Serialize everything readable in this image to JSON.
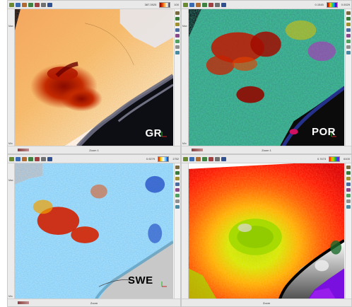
{
  "panels": [
    {
      "id": "gr",
      "label": "GR",
      "colorbar_value_left": "387.3925",
      "colorbar_value_right": "100",
      "zoom_text": "Zoom",
      "zoom_value": "1",
      "side_top": "Max",
      "side_bottom": "Min"
    },
    {
      "id": "por",
      "label": "POR",
      "colorbar_value_left": "0.1545",
      "colorbar_value_right": "0.0029",
      "zoom_text": "Zoom",
      "zoom_value": "1",
      "side_top": "Max",
      "side_bottom": "Min"
    },
    {
      "id": "swe",
      "label": "SWE",
      "colorbar_value_left": "0.9279",
      "colorbar_value_right": "1752",
      "zoom_text": "Zoom",
      "zoom_value": "",
      "side_top": "Max",
      "side_bottom": "Min"
    },
    {
      "id": "other",
      "label": "",
      "colorbar_value_left": "0.7473",
      "colorbar_value_right": "6100",
      "zoom_text": "Zoom",
      "zoom_value": "",
      "side_top": "",
      "side_bottom": ""
    }
  ],
  "icons": {
    "toolbar": [
      "select-icon",
      "pan-icon",
      "zoom-icon",
      "layer-icon",
      "palette-icon",
      "grid-icon",
      "export-icon"
    ],
    "sidebar": [
      "properties-icon",
      "layers-icon",
      "contour-icon",
      "well-icon",
      "fault-icon",
      "legend-icon",
      "ruler-icon",
      "settings-icon"
    ]
  },
  "colors": {
    "gr_high": "#8a0a00",
    "gr_mid": "#f2a040",
    "gr_low": "#ffffff",
    "gr_outside": "#0d0d14",
    "por_high": "#8a0000",
    "por_mid": "#20c060",
    "por_low": "#1e2ab0",
    "swe_high": "#c81a00",
    "swe_low": "#1040c0",
    "swe_outside": "#c8c8c8",
    "other_high": "#ff2a00",
    "other_mid": "#c0e000",
    "other_low": "#7a10e0"
  }
}
